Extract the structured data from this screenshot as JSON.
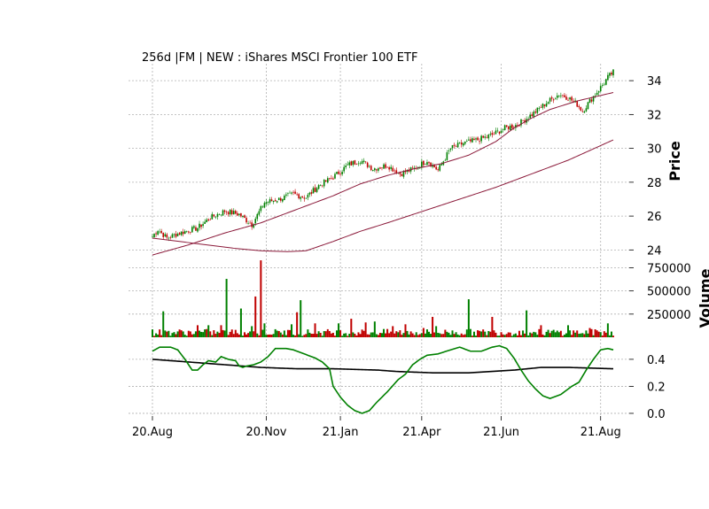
{
  "chart_data": {
    "type": "candlestick",
    "title": "256d |FM | NEW : iShares MSCI Frontier 100 ETF",
    "x_ticks": [
      "20.Aug",
      "20.Nov",
      "21.Jan",
      "21.Apr",
      "21.Jun",
      "21.Aug"
    ],
    "n_days": 256,
    "grid": true,
    "colors": {
      "up": "#008000",
      "down": "#c00000",
      "ma": "#8b1a3a",
      "osc_fast": "#008000",
      "osc_slow": "#000000"
    },
    "price_panel": {
      "ylabel": "Price",
      "yticks": [
        24,
        26,
        28,
        30,
        32,
        34
      ],
      "ylim": [
        23.6,
        35.0
      ],
      "close": [
        [
          0,
          24.8
        ],
        [
          3,
          25.2
        ],
        [
          8,
          24.7
        ],
        [
          15,
          25.0
        ],
        [
          25,
          25.3
        ],
        [
          32,
          25.9
        ],
        [
          40,
          26.3
        ],
        [
          48,
          26.1
        ],
        [
          55,
          25.5
        ],
        [
          62,
          26.8
        ],
        [
          70,
          27.0
        ],
        [
          78,
          27.3
        ],
        [
          85,
          27.1
        ],
        [
          92,
          27.8
        ],
        [
          100,
          28.3
        ],
        [
          108,
          29.0
        ],
        [
          115,
          29.3
        ],
        [
          122,
          28.8
        ],
        [
          130,
          29.0
        ],
        [
          137,
          28.5
        ],
        [
          145,
          28.8
        ],
        [
          152,
          29.3
        ],
        [
          158,
          28.7
        ],
        [
          165,
          30.0
        ],
        [
          172,
          30.3
        ],
        [
          180,
          30.5
        ],
        [
          188,
          30.8
        ],
        [
          195,
          31.2
        ],
        [
          202,
          31.4
        ],
        [
          210,
          32.0
        ],
        [
          218,
          32.7
        ],
        [
          225,
          33.2
        ],
        [
          230,
          33.0
        ],
        [
          235,
          32.6
        ],
        [
          238,
          32.2
        ],
        [
          242,
          32.8
        ],
        [
          248,
          33.6
        ],
        [
          252,
          34.2
        ],
        [
          255,
          34.5
        ]
      ],
      "ma_fast": [
        [
          0,
          23.7
        ],
        [
          20,
          24.3
        ],
        [
          40,
          25.0
        ],
        [
          60,
          25.6
        ],
        [
          80,
          26.4
        ],
        [
          100,
          27.2
        ],
        [
          115,
          27.9
        ],
        [
          130,
          28.4
        ],
        [
          145,
          28.8
        ],
        [
          160,
          29.1
        ],
        [
          175,
          29.6
        ],
        [
          190,
          30.4
        ],
        [
          200,
          31.2
        ],
        [
          210,
          31.8
        ],
        [
          220,
          32.3
        ],
        [
          235,
          32.8
        ],
        [
          255,
          33.3
        ]
      ],
      "ma_slow": [
        [
          0,
          24.7
        ],
        [
          15,
          24.5
        ],
        [
          30,
          24.3
        ],
        [
          45,
          24.1
        ],
        [
          60,
          23.95
        ],
        [
          75,
          23.9
        ],
        [
          85,
          23.95
        ],
        [
          100,
          24.5
        ],
        [
          115,
          25.1
        ],
        [
          130,
          25.6
        ],
        [
          150,
          26.3
        ],
        [
          170,
          27.0
        ],
        [
          190,
          27.7
        ],
        [
          210,
          28.5
        ],
        [
          230,
          29.3
        ],
        [
          255,
          30.5
        ]
      ]
    },
    "volume_panel": {
      "ylabel": "Volume",
      "yticks": [
        250000,
        500000,
        750000
      ],
      "ytick_labels": [
        "250000",
        "500000",
        "750000"
      ],
      "ylim": [
        0,
        850000
      ],
      "spikes": [
        [
          6,
          280000,
          "up"
        ],
        [
          25,
          130000,
          "down"
        ],
        [
          31,
          130000,
          "up"
        ],
        [
          38,
          130000,
          "down"
        ],
        [
          41,
          630000,
          "up"
        ],
        [
          49,
          310000,
          "up"
        ],
        [
          55,
          120000,
          "up"
        ],
        [
          57,
          440000,
          "down"
        ],
        [
          60,
          830000,
          "down"
        ],
        [
          62,
          150000,
          "up"
        ],
        [
          77,
          140000,
          "up"
        ],
        [
          80,
          270000,
          "down"
        ],
        [
          82,
          400000,
          "up"
        ],
        [
          90,
          150000,
          "down"
        ],
        [
          103,
          150000,
          "up"
        ],
        [
          110,
          200000,
          "down"
        ],
        [
          118,
          160000,
          "down"
        ],
        [
          123,
          170000,
          "up"
        ],
        [
          133,
          120000,
          "down"
        ],
        [
          140,
          140000,
          "down"
        ],
        [
          150,
          100000,
          "down"
        ],
        [
          155,
          220000,
          "down"
        ],
        [
          157,
          120000,
          "up"
        ],
        [
          175,
          410000,
          "up"
        ],
        [
          188,
          220000,
          "down"
        ],
        [
          207,
          290000,
          "up"
        ],
        [
          215,
          130000,
          "down"
        ],
        [
          230,
          130000,
          "up"
        ],
        [
          242,
          100000,
          "down"
        ],
        [
          252,
          150000,
          "up"
        ]
      ]
    },
    "oscillator_panel": {
      "ylabel": "",
      "yticks": [
        0.0,
        0.2,
        0.4
      ],
      "ytick_labels": [
        "0.0",
        "0.2",
        "0.4"
      ],
      "ylim": [
        -0.02,
        0.55
      ],
      "fast": [
        [
          0,
          0.46
        ],
        [
          4,
          0.49
        ],
        [
          10,
          0.49
        ],
        [
          14,
          0.47
        ],
        [
          18,
          0.4
        ],
        [
          22,
          0.32
        ],
        [
          25,
          0.32
        ],
        [
          28,
          0.36
        ],
        [
          31,
          0.39
        ],
        [
          35,
          0.38
        ],
        [
          38,
          0.42
        ],
        [
          42,
          0.4
        ],
        [
          46,
          0.39
        ],
        [
          48,
          0.35
        ],
        [
          50,
          0.34
        ],
        [
          52,
          0.35
        ],
        [
          56,
          0.36
        ],
        [
          60,
          0.38
        ],
        [
          64,
          0.42
        ],
        [
          68,
          0.48
        ],
        [
          74,
          0.48
        ],
        [
          78,
          0.47
        ],
        [
          82,
          0.45
        ],
        [
          86,
          0.43
        ],
        [
          90,
          0.41
        ],
        [
          94,
          0.38
        ],
        [
          98,
          0.33
        ],
        [
          100,
          0.2
        ],
        [
          104,
          0.12
        ],
        [
          108,
          0.06
        ],
        [
          112,
          0.02
        ],
        [
          116,
          0.0
        ],
        [
          120,
          0.02
        ],
        [
          124,
          0.08
        ],
        [
          130,
          0.16
        ],
        [
          136,
          0.25
        ],
        [
          140,
          0.29
        ],
        [
          144,
          0.36
        ],
        [
          148,
          0.4
        ],
        [
          152,
          0.43
        ],
        [
          158,
          0.44
        ],
        [
          165,
          0.47
        ],
        [
          170,
          0.49
        ],
        [
          176,
          0.46
        ],
        [
          182,
          0.46
        ],
        [
          188,
          0.49
        ],
        [
          192,
          0.5
        ],
        [
          196,
          0.48
        ],
        [
          200,
          0.41
        ],
        [
          204,
          0.32
        ],
        [
          208,
          0.24
        ],
        [
          212,
          0.18
        ],
        [
          216,
          0.13
        ],
        [
          220,
          0.11
        ],
        [
          226,
          0.14
        ],
        [
          232,
          0.2
        ],
        [
          236,
          0.23
        ],
        [
          240,
          0.32
        ],
        [
          244,
          0.4
        ],
        [
          248,
          0.47
        ],
        [
          252,
          0.48
        ],
        [
          255,
          0.47
        ]
      ],
      "slow": [
        [
          0,
          0.4
        ],
        [
          20,
          0.38
        ],
        [
          40,
          0.36
        ],
        [
          60,
          0.34
        ],
        [
          80,
          0.33
        ],
        [
          100,
          0.33
        ],
        [
          125,
          0.32
        ],
        [
          135,
          0.31
        ],
        [
          155,
          0.3
        ],
        [
          175,
          0.3
        ],
        [
          200,
          0.32
        ],
        [
          215,
          0.34
        ],
        [
          230,
          0.34
        ],
        [
          255,
          0.33
        ]
      ]
    }
  }
}
